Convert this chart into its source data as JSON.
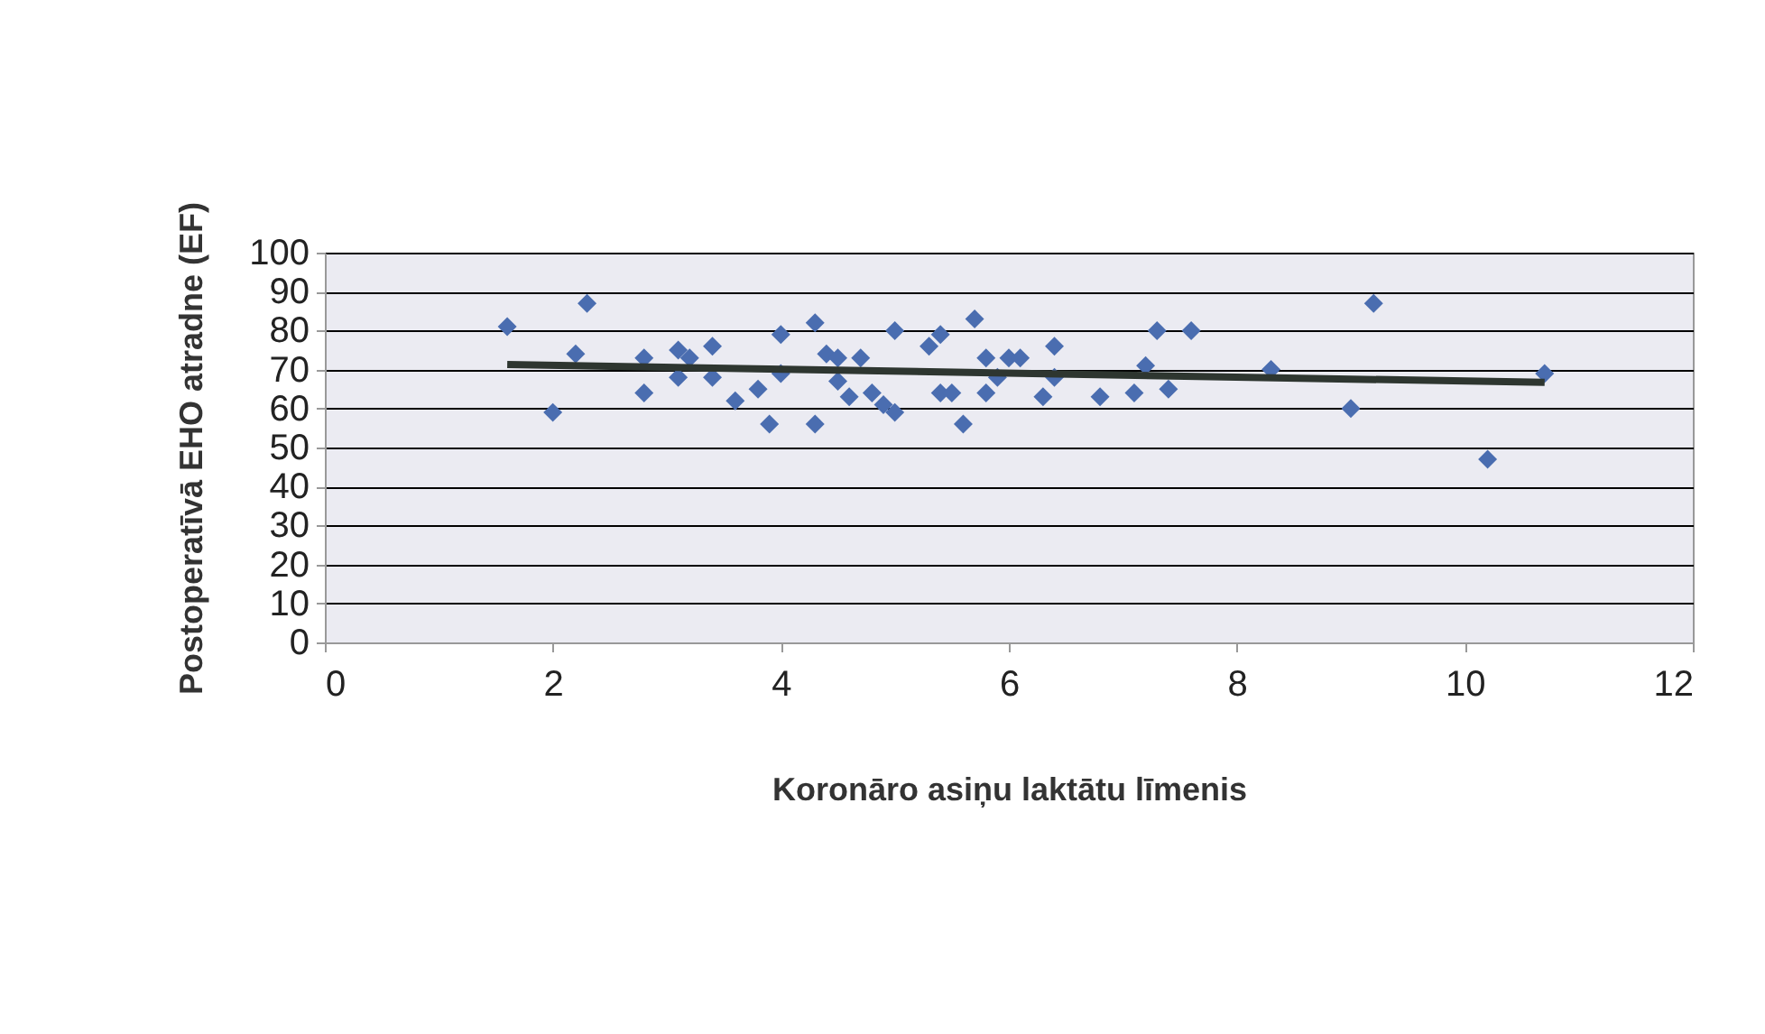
{
  "chart_data": {
    "type": "scatter",
    "xlabel": "Koronāro asiņu laktātu līmenis",
    "ylabel": "Postoperatīvā EHO atradne (EF)",
    "xlim": [
      0,
      12
    ],
    "xticks": [
      0,
      2,
      4,
      6,
      8,
      10,
      12
    ],
    "ylim": [
      0,
      100
    ],
    "yticks": [
      0,
      10,
      20,
      30,
      40,
      50,
      60,
      70,
      80,
      90,
      100
    ],
    "grid": "y",
    "series": [
      {
        "marker": "diamond",
        "color": "#4a6db0",
        "x": [
          1.6,
          2.0,
          2.2,
          2.3,
          2.8,
          2.8,
          3.1,
          3.1,
          3.2,
          3.4,
          3.4,
          3.6,
          3.8,
          3.9,
          4.0,
          4.0,
          4.3,
          4.3,
          4.4,
          4.5,
          4.5,
          4.6,
          4.7,
          4.8,
          4.9,
          5.0,
          5.0,
          5.3,
          5.4,
          5.4,
          5.5,
          5.6,
          5.7,
          5.8,
          5.8,
          5.9,
          6.0,
          6.1,
          6.3,
          6.4,
          6.4,
          6.8,
          7.1,
          7.2,
          7.3,
          7.4,
          7.6,
          8.3,
          9.0,
          9.2,
          10.2,
          10.7
        ],
        "values": [
          81,
          59,
          74,
          87,
          73,
          64,
          68,
          75,
          73,
          76,
          68,
          62,
          65,
          56,
          79,
          69,
          82,
          56,
          74,
          73,
          67,
          63,
          73,
          64,
          61,
          59,
          80,
          76,
          79,
          64,
          64,
          56,
          83,
          73,
          64,
          68,
          73,
          73,
          63,
          76,
          68,
          63,
          64,
          71,
          80,
          65,
          80,
          70,
          60,
          87,
          47,
          69
        ]
      },
      {
        "type": "line",
        "marker": "none",
        "color": "#2e3630",
        "x": [
          1.6,
          10.7
        ],
        "values": [
          71.3,
          66.7
        ]
      }
    ]
  }
}
